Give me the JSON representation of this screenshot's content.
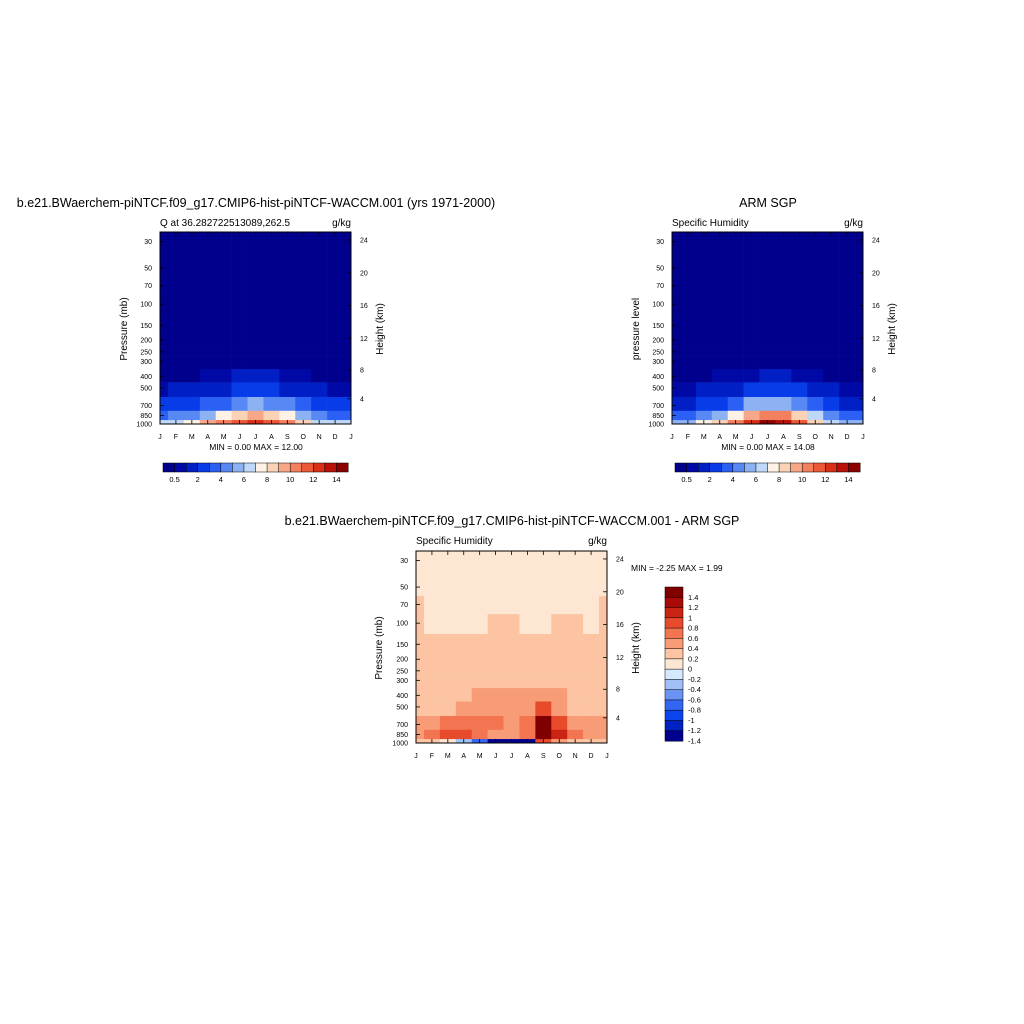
{
  "months": [
    "J",
    "F",
    "M",
    "A",
    "M",
    "J",
    "J",
    "A",
    "S",
    "O",
    "N",
    "D",
    "J"
  ],
  "pressure_ticks": [
    "30",
    "50",
    "70",
    "100",
    "150",
    "200",
    "250",
    "300",
    "400",
    "500",
    "700",
    "850",
    "1000"
  ],
  "height_ticks": [
    "24",
    "20",
    "16",
    "12",
    "8",
    "4"
  ],
  "colors": {
    "model_obs_scale": [
      "#00008c",
      "#0008a6",
      "#0020c6",
      "#083ce8",
      "#2c60f4",
      "#5888f4",
      "#8cb2f4",
      "#c0d8f8",
      "#fef2e4",
      "#fcd2b6",
      "#f8a888",
      "#f2805e",
      "#ea5838",
      "#d83018",
      "#b8100a",
      "#8c0000"
    ],
    "diff_scale": [
      "#00008c",
      "#0022c4",
      "#0b44ec",
      "#3366f2",
      "#6a94f4",
      "#a0c0f6",
      "#d6e8fc",
      "#fde6d2",
      "#fcc4a2",
      "#f89c78",
      "#f27450",
      "#e84a2c",
      "#cc2414",
      "#a80a06",
      "#800000"
    ]
  },
  "charts": [
    {
      "title": "b.e21.BWaerchem-piNTCF.f09_g17.CMIP6-hist-piNTCF-WACCM.001 (yrs 1971-2000)",
      "left_label": "Q at 36.282722513089,262.5",
      "right_label": "g/kg",
      "ylabel": "Pressure (mb)",
      "ylabel_right": "Height (km)",
      "minmax": "MIN =   0.00 MAX =  12.00",
      "colorbar_labels": [
        "0.5",
        "2",
        "4",
        "6",
        "8",
        "10",
        "12",
        "14"
      ]
    },
    {
      "title": "ARM SGP",
      "left_label": "Specific Humidity",
      "right_label": "g/kg",
      "ylabel": "pressure level",
      "ylabel_right": "Height (km)",
      "minmax": "MIN =   0.00 MAX =  14.08",
      "colorbar_labels": [
        "0.5",
        "2",
        "4",
        "6",
        "8",
        "10",
        "12",
        "14"
      ]
    },
    {
      "title": "b.e21.BWaerchem-piNTCF.f09_g17.CMIP6-hist-piNTCF-WACCM.001 - ARM SGP",
      "left_label": "Specific Humidity",
      "right_label": "g/kg",
      "ylabel": "Pressure (mb)",
      "ylabel_right": "Height (km)",
      "minmax": "MIN =  -2.25 MAX =   1.99",
      "colorbar_labels": [
        "1.4",
        "1.2",
        "1",
        "0.8",
        "0.6",
        "0.4",
        "0.2",
        "0",
        "-0.2",
        "-0.4",
        "-0.6",
        "-0.8",
        "-1",
        "-1.2",
        "-1.4"
      ]
    }
  ],
  "chart_data": [
    {
      "type": "heatmap",
      "title": "b.e21.BWaerchem-piNTCF.f09_g17.CMIP6-hist-piNTCF-WACCM.001 (yrs 1971-2000)",
      "xlabel": "",
      "ylabel": "Pressure (mb)",
      "units": "g/kg",
      "x": [
        "J",
        "F",
        "M",
        "A",
        "M",
        "J",
        "J",
        "A",
        "S",
        "O",
        "N",
        "D",
        "J"
      ],
      "y_levels": [
        1000,
        850,
        700,
        500,
        400,
        300,
        250,
        200,
        150,
        100,
        70,
        50,
        30
      ],
      "ylim": [
        1000,
        25
      ],
      "levels": [
        0.5,
        1,
        2,
        3,
        4,
        5,
        6,
        7,
        8,
        9,
        10,
        11,
        12,
        13,
        14
      ],
      "values": [
        [
          6.0,
          6.5,
          7.5,
          9.0,
          10.5,
          11.5,
          12.0,
          11.5,
          10.0,
          8.0,
          6.5,
          6.0,
          6.0
        ],
        [
          3.8,
          4.0,
          4.6,
          5.6,
          7.0,
          8.6,
          9.0,
          8.4,
          7.0,
          5.6,
          4.4,
          3.9,
          3.8
        ],
        [
          2.0,
          2.1,
          2.4,
          3.0,
          3.8,
          4.8,
          5.2,
          4.8,
          4.0,
          3.0,
          2.3,
          2.0,
          2.0
        ],
        [
          0.9,
          1.0,
          1.1,
          1.4,
          1.8,
          2.3,
          2.5,
          2.3,
          1.9,
          1.4,
          1.1,
          0.9,
          0.9
        ],
        [
          0.3,
          0.35,
          0.4,
          0.55,
          0.75,
          1.0,
          1.1,
          1.0,
          0.85,
          0.6,
          0.4,
          0.3,
          0.3
        ],
        [
          0.1,
          0.1,
          0.12,
          0.15,
          0.2,
          0.28,
          0.32,
          0.28,
          0.24,
          0.18,
          0.12,
          0.1,
          0.1
        ],
        [
          0,
          0,
          0,
          0,
          0,
          0,
          0,
          0,
          0,
          0,
          0,
          0,
          0
        ],
        [
          0,
          0,
          0,
          0,
          0,
          0,
          0,
          0,
          0,
          0,
          0,
          0,
          0
        ],
        [
          0,
          0,
          0,
          0,
          0,
          0,
          0,
          0,
          0,
          0,
          0,
          0,
          0
        ],
        [
          0,
          0,
          0,
          0,
          0,
          0,
          0,
          0,
          0,
          0,
          0,
          0,
          0
        ],
        [
          0,
          0,
          0,
          0,
          0,
          0,
          0,
          0,
          0,
          0,
          0,
          0,
          0
        ],
        [
          0,
          0,
          0,
          0,
          0,
          0,
          0,
          0,
          0,
          0,
          0,
          0,
          0
        ],
        [
          0,
          0,
          0,
          0,
          0,
          0,
          0,
          0,
          0,
          0,
          0,
          0,
          0
        ]
      ],
      "min": 0.0,
      "max": 12.0
    },
    {
      "type": "heatmap",
      "title": "ARM SGP",
      "xlabel": "",
      "ylabel": "pressure level",
      "units": "g/kg",
      "x": [
        "J",
        "F",
        "M",
        "A",
        "M",
        "J",
        "J",
        "A",
        "S",
        "O",
        "N",
        "D",
        "J"
      ],
      "y_levels": [
        1000,
        850,
        700,
        500,
        400,
        300,
        250,
        200,
        150,
        100,
        70,
        50,
        30
      ],
      "ylim": [
        1000,
        25
      ],
      "levels": [
        0.5,
        1,
        2,
        3,
        4,
        5,
        6,
        7,
        8,
        9,
        10,
        11,
        12,
        13,
        14
      ],
      "values": [
        [
          5.0,
          5.8,
          7.0,
          8.8,
          10.8,
          12.8,
          14.0,
          13.2,
          11.0,
          8.6,
          6.2,
          5.2,
          5.0
        ],
        [
          3.0,
          3.4,
          4.2,
          5.5,
          7.2,
          9.2,
          10.6,
          10.0,
          8.2,
          6.0,
          4.0,
          3.2,
          3.0
        ],
        [
          1.6,
          1.8,
          2.2,
          2.9,
          3.8,
          5.0,
          5.8,
          5.4,
          4.4,
          3.2,
          2.1,
          1.7,
          1.6
        ],
        [
          0.7,
          0.8,
          1.0,
          1.3,
          1.7,
          2.2,
          2.6,
          2.4,
          2.0,
          1.5,
          1.0,
          0.75,
          0.7
        ],
        [
          0.25,
          0.3,
          0.38,
          0.5,
          0.7,
          0.95,
          1.1,
          1.05,
          0.85,
          0.6,
          0.38,
          0.28,
          0.25
        ],
        [
          0.08,
          0.09,
          0.1,
          0.14,
          0.2,
          0.28,
          0.32,
          0.3,
          0.24,
          0.18,
          0.11,
          0.08,
          0.08
        ],
        [
          0,
          0,
          0,
          0,
          0,
          0,
          0,
          0,
          0,
          0,
          0,
          0,
          0
        ],
        [
          0,
          0,
          0,
          0,
          0,
          0,
          0,
          0,
          0,
          0,
          0,
          0,
          0
        ],
        [
          0,
          0,
          0,
          0,
          0,
          0,
          0,
          0,
          0,
          0,
          0,
          0,
          0
        ],
        [
          0,
          0,
          0,
          0,
          0,
          0,
          0,
          0,
          0,
          0,
          0,
          0,
          0
        ],
        [
          0,
          0,
          0,
          0,
          0,
          0,
          0,
          0,
          0,
          0,
          0,
          0,
          0
        ],
        [
          0,
          0,
          0,
          0,
          0,
          0,
          0,
          0,
          0,
          0,
          0,
          0,
          0
        ],
        [
          0,
          0,
          0,
          0,
          0,
          0,
          0,
          0,
          0,
          0,
          0,
          0,
          0
        ]
      ],
      "min": 0.0,
      "max": 14.08
    },
    {
      "type": "heatmap",
      "title": "b.e21.BWaerchem-piNTCF.f09_g17.CMIP6-hist-piNTCF-WACCM.001 - ARM SGP",
      "xlabel": "",
      "ylabel": "Pressure (mb)",
      "units": "g/kg",
      "x": [
        "J",
        "F",
        "M",
        "A",
        "M",
        "J",
        "J",
        "A",
        "S",
        "O",
        "N",
        "D",
        "J"
      ],
      "y_levels": [
        1000,
        850,
        700,
        500,
        400,
        300,
        250,
        200,
        150,
        100,
        70,
        50,
        30
      ],
      "ylim": [
        1000,
        25
      ],
      "levels": [
        -1.4,
        -1.2,
        -1,
        -0.8,
        -0.6,
        -0.4,
        -0.2,
        0,
        0.2,
        0.4,
        0.6,
        0.8,
        1,
        1.2,
        1.4
      ],
      "values": [
        [
          0.1,
          0.05,
          -0.2,
          -0.6,
          -1.0,
          -1.5,
          -2.0,
          -2.25,
          0.6,
          0.3,
          0.1,
          0.1,
          0.1
        ],
        [
          0.3,
          0.4,
          0.6,
          0.7,
          0.5,
          0.3,
          0.2,
          0.4,
          1.99,
          0.9,
          0.4,
          0.3,
          0.3
        ],
        [
          0.25,
          0.3,
          0.4,
          0.5,
          0.5,
          0.4,
          0.3,
          0.4,
          1.3,
          0.6,
          0.3,
          0.25,
          0.25
        ],
        [
          0.15,
          0.15,
          0.18,
          0.25,
          0.3,
          0.35,
          0.3,
          0.3,
          0.6,
          0.3,
          0.18,
          0.15,
          0.15
        ],
        [
          0.12,
          0.12,
          0.14,
          0.16,
          0.2,
          0.22,
          0.22,
          0.2,
          0.3,
          0.2,
          0.14,
          0.12,
          0.12
        ],
        [
          0.08,
          0.08,
          0.08,
          0.1,
          0.1,
          0.12,
          0.12,
          0.12,
          0.14,
          0.12,
          0.1,
          0.08,
          0.08
        ],
        [
          0.05,
          0.05,
          0.05,
          0.05,
          0.06,
          0.06,
          0.06,
          0.06,
          0.06,
          0.06,
          0.05,
          0.05,
          0.05
        ],
        [
          0.02,
          0.02,
          0.02,
          0.02,
          0.02,
          0.02,
          0.02,
          0.02,
          0.02,
          0.02,
          0.02,
          0.02,
          0.02
        ],
        [
          0.01,
          0.01,
          0.01,
          0.01,
          0.01,
          0.01,
          0.01,
          0.01,
          0.01,
          0.01,
          0.01,
          0.01,
          0.01
        ],
        [
          0.005,
          -0.01,
          -0.01,
          -0.01,
          -0.01,
          0.005,
          0.005,
          -0.01,
          -0.01,
          0.005,
          0.005,
          -0.01,
          0.005
        ],
        [
          0.005,
          -0.01,
          -0.01,
          -0.01,
          -0.01,
          -0.01,
          -0.01,
          -0.01,
          -0.01,
          -0.01,
          -0.01,
          -0.01,
          0.005
        ],
        [
          -0.01,
          -0.01,
          -0.01,
          -0.01,
          -0.01,
          -0.01,
          -0.01,
          -0.01,
          -0.01,
          -0.01,
          -0.01,
          -0.01,
          -0.01
        ],
        [
          -0.01,
          -0.01,
          -0.01,
          -0.01,
          -0.01,
          -0.01,
          -0.01,
          -0.01,
          -0.01,
          -0.01,
          -0.01,
          -0.01,
          -0.01
        ]
      ],
      "min": -2.25,
      "max": 1.99
    }
  ]
}
